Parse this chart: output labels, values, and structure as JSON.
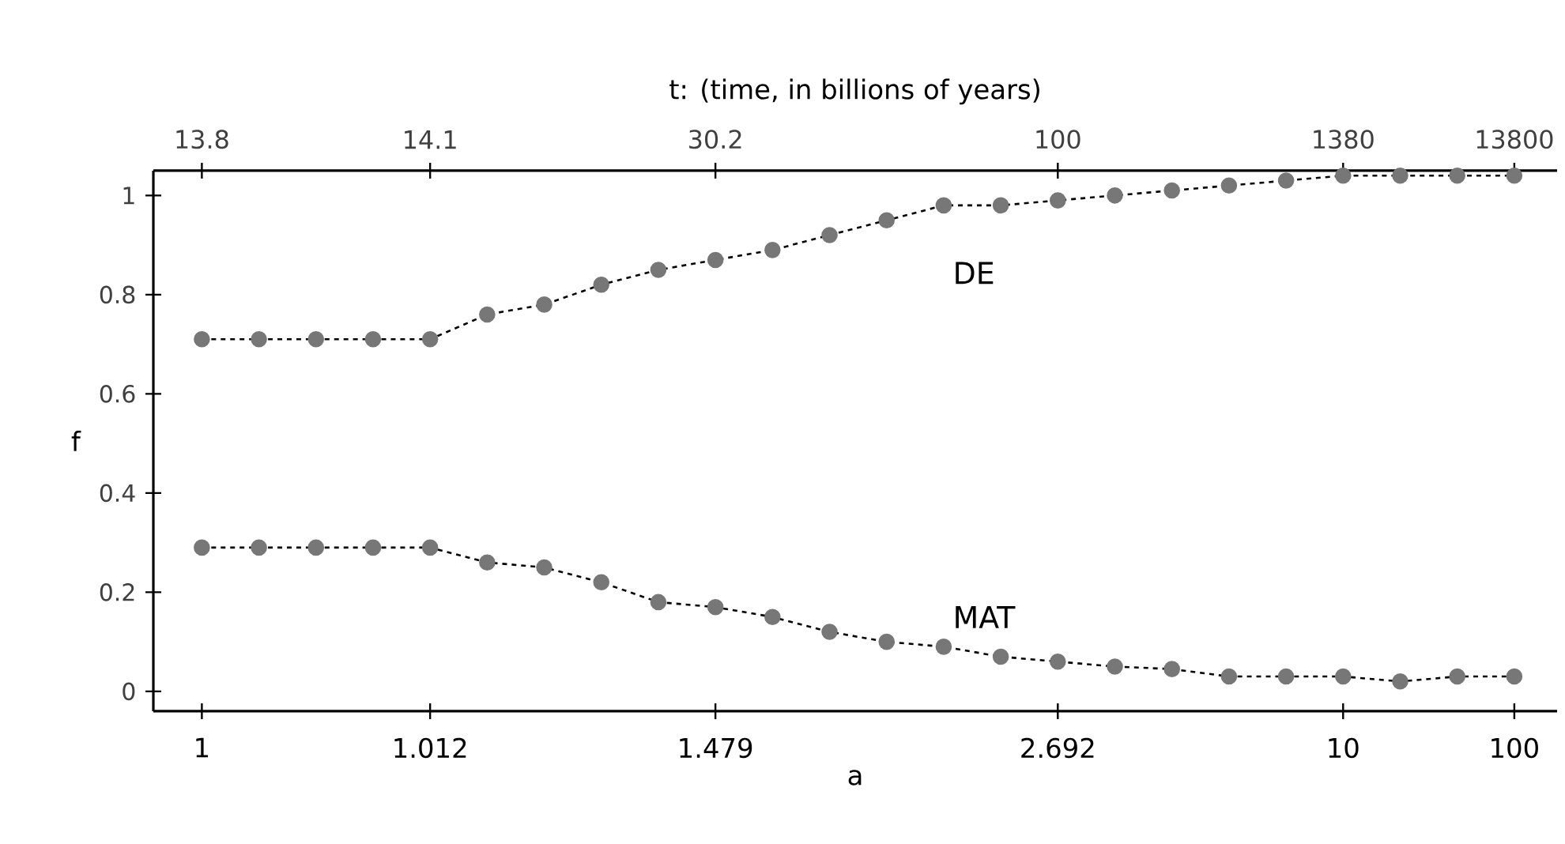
{
  "chart_data": {
    "type": "line",
    "x2label": "t: (time,  in billions of years)",
    "xlabel": "a",
    "ylabel": "f",
    "categories": [
      "1",
      null,
      null,
      null,
      "1.012",
      null,
      null,
      null,
      null,
      "1.479",
      null,
      null,
      null,
      null,
      null,
      "2.692",
      null,
      null,
      null,
      null,
      "10",
      null,
      null,
      "100"
    ],
    "ylim": [
      -0.04,
      1.05
    ],
    "yticks": [
      0,
      0.2,
      0.4,
      0.6,
      0.8,
      1
    ],
    "annotations": [
      {
        "text": "13.8",
        "x": "1"
      },
      {
        "text": "14.1",
        "x": "1.012"
      },
      {
        "text": "30.2",
        "x": "1.479"
      },
      {
        "text": "100",
        "x": "2.692"
      },
      {
        "text": "1380",
        "x": "10"
      },
      {
        "text": "13800",
        "x": "100"
      }
    ],
    "series": [
      {
        "name": "DE",
        "color": "#777777",
        "values": [
          0.71,
          0.71,
          0.71,
          0.71,
          0.71,
          0.76,
          0.78,
          0.82,
          0.85,
          0.87,
          0.89,
          0.92,
          0.95,
          0.98,
          0.98,
          0.99,
          1.0,
          1.01,
          1.02,
          1.03,
          1.04,
          1.04,
          1.04,
          1.04
        ]
      },
      {
        "name": "MAT",
        "color": "#777777",
        "values": [
          0.29,
          0.29,
          0.29,
          0.29,
          0.29,
          0.26,
          0.25,
          0.22,
          0.18,
          0.17,
          0.15,
          0.12,
          0.1,
          0.09,
          0.07,
          0.06,
          0.05,
          0.045,
          0.03,
          0.03,
          0.03,
          0.02,
          0.03,
          0.03
        ]
      }
    ],
    "marker": "circle",
    "line_style": "dashed"
  }
}
